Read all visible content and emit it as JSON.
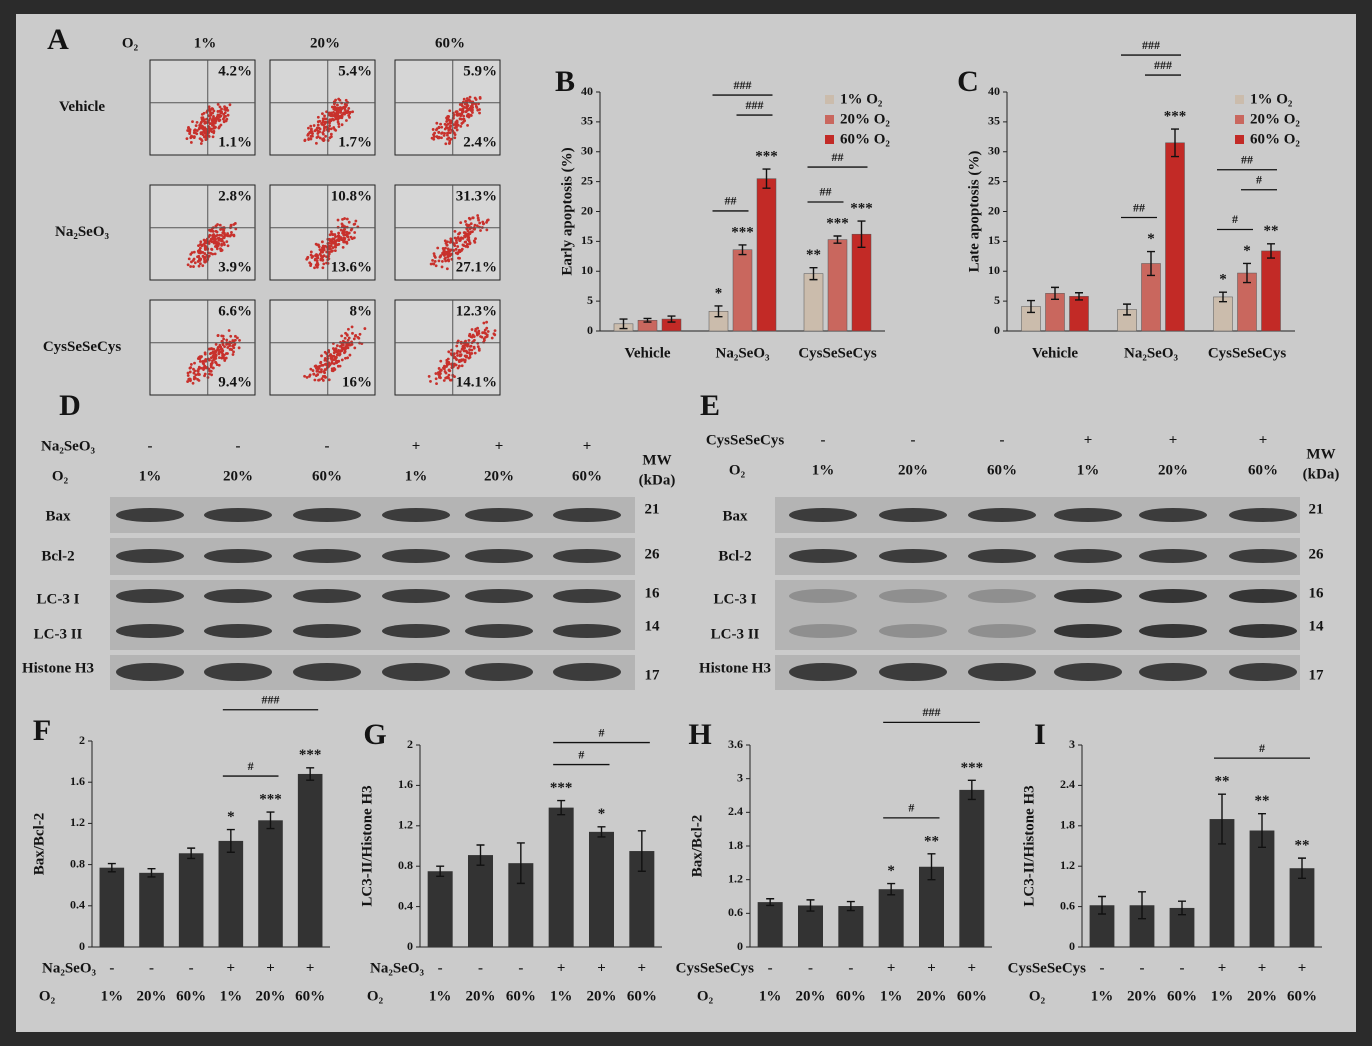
{
  "panel_a": {
    "label": "A",
    "o2_label": "O₂",
    "columns": [
      "1%",
      "20%",
      "60%"
    ],
    "rows": [
      {
        "label": "Vehicle",
        "cells": [
          {
            "upper": "4.2%",
            "lower": "1.1%"
          },
          {
            "upper": "5.4%",
            "lower": "1.7%"
          },
          {
            "upper": "5.9%",
            "lower": "2.4%"
          }
        ]
      },
      {
        "label": "Na₂SeO₃",
        "cells": [
          {
            "upper": "2.8%",
            "lower": "3.9%"
          },
          {
            "upper": "10.8%",
            "lower": "13.6%"
          },
          {
            "upper": "31.3%",
            "lower": "27.1%"
          }
        ]
      },
      {
        "label": "CysSeSeCys",
        "cells": [
          {
            "upper": "6.6%",
            "lower": "9.4%"
          },
          {
            "upper": "8%",
            "lower": "16%"
          },
          {
            "upper": "12.3%",
            "lower": "14.1%"
          }
        ]
      }
    ]
  },
  "blot_d": {
    "label": "D",
    "treatment": {
      "label": "Na₂SeO₃",
      "values": [
        "-",
        "-",
        "-",
        "+",
        "+",
        "+"
      ]
    },
    "o2": {
      "label": "O₂",
      "values": [
        "1%",
        "20%",
        "60%",
        "1%",
        "20%",
        "60%"
      ]
    },
    "mw_label": [
      "MW",
      "(kDa)"
    ],
    "rows": [
      {
        "label": "Bax",
        "mw": 21
      },
      {
        "label": "Bcl-2",
        "mw": 26
      },
      {
        "label": "LC-3 I",
        "mw": 16
      },
      {
        "label": "LC-3 II",
        "mw": 14
      },
      {
        "label": "Histone H3",
        "mw": 17
      }
    ]
  },
  "blot_e": {
    "label": "E",
    "treatment": {
      "label": "CysSeSeCys",
      "values": [
        "-",
        "-",
        "-",
        "+",
        "+",
        "+"
      ]
    },
    "o2": {
      "label": "O₂",
      "values": [
        "1%",
        "20%",
        "60%",
        "1%",
        "20%",
        "60%"
      ]
    },
    "mw_label": [
      "MW",
      "(kDa)"
    ],
    "rows": [
      {
        "label": "Bax",
        "mw": 21
      },
      {
        "label": "Bcl-2",
        "mw": 26
      },
      {
        "label": "LC-3 I",
        "mw": 16
      },
      {
        "label": "LC-3 II",
        "mw": 14
      },
      {
        "label": "Histone H3",
        "mw": 17
      }
    ]
  },
  "chart_data": [
    {
      "type": "bar",
      "panel": "B",
      "y_label": "Early apoptosis (%)",
      "categories": [
        "Vehicle",
        "Na₂SeO₃",
        "CysSeSeCys"
      ],
      "ylim": [
        0,
        40
      ],
      "yticks": [
        0,
        5,
        10,
        15,
        20,
        25,
        30,
        35,
        40
      ],
      "legend": "upper right",
      "series": [
        {
          "name": "1% O₂",
          "color": "#cbbcac",
          "values": [
            1.2,
            3.3,
            9.6
          ],
          "errors": [
            0.8,
            0.9,
            1.0
          ],
          "stars": [
            null,
            "*",
            "**"
          ]
        },
        {
          "name": "20% O₂",
          "color": "#c9675e",
          "values": [
            1.8,
            13.6,
            15.3
          ],
          "errors": [
            0.3,
            0.8,
            0.6
          ],
          "stars": [
            null,
            "***",
            "***"
          ]
        },
        {
          "name": "60% O₂",
          "color": "#c22a26",
          "values": [
            2.0,
            25.5,
            16.2
          ],
          "errors": [
            0.5,
            1.6,
            2.2
          ],
          "stars": [
            null,
            "***",
            "***"
          ]
        }
      ],
      "brackets": [
        {
          "category": 1,
          "from": 0,
          "to": 1,
          "label": "##"
        },
        {
          "category": 1,
          "from": 1,
          "to": 2,
          "label": "###"
        },
        {
          "category": 1,
          "from": 0,
          "to": 2,
          "label": "###"
        },
        {
          "category": 2,
          "from": 0,
          "to": 1,
          "label": "##"
        },
        {
          "category": 2,
          "from": 0,
          "to": 2,
          "label": "##"
        }
      ]
    },
    {
      "type": "bar",
      "panel": "C",
      "y_label": "Late apoptosis (%)",
      "categories": [
        "Vehicle",
        "Na₂SeO₃",
        "CysSeSeCys"
      ],
      "ylim": [
        0,
        40
      ],
      "yticks": [
        0,
        5,
        10,
        15,
        20,
        25,
        30,
        35,
        40
      ],
      "legend": "upper right",
      "series": [
        {
          "name": "1% O₂",
          "color": "#cbbcac",
          "values": [
            4.1,
            3.6,
            5.7
          ],
          "errors": [
            1.0,
            0.9,
            0.8
          ],
          "stars": [
            null,
            null,
            "*"
          ]
        },
        {
          "name": "20% O₂",
          "color": "#c9675e",
          "values": [
            6.3,
            11.3,
            9.7
          ],
          "errors": [
            1.0,
            2.0,
            1.6
          ],
          "stars": [
            null,
            "*",
            "*"
          ]
        },
        {
          "name": "60% O₂",
          "color": "#c22a26",
          "values": [
            5.8,
            31.5,
            13.4
          ],
          "errors": [
            0.6,
            2.3,
            1.2
          ],
          "stars": [
            null,
            "***",
            "**"
          ]
        }
      ],
      "brackets": [
        {
          "category": 1,
          "from": 0,
          "to": 1,
          "label": "##"
        },
        {
          "category": 1,
          "from": 1,
          "to": 2,
          "label": "###"
        },
        {
          "category": 1,
          "from": 0,
          "to": 2,
          "label": "###"
        },
        {
          "category": 2,
          "from": 0,
          "to": 1,
          "label": "#"
        },
        {
          "category": 2,
          "from": 1,
          "to": 2,
          "label": "#"
        },
        {
          "category": 2,
          "from": 0,
          "to": 2,
          "label": "##"
        }
      ]
    },
    {
      "type": "bar",
      "panel": "F",
      "y_label": "Bax/Bcl-2",
      "color": "#333333",
      "treatment": {
        "label": "Na₂SeO₃",
        "values": [
          "-",
          "-",
          "-",
          "+",
          "+",
          "+"
        ]
      },
      "category_label": "O₂",
      "categories": [
        "1%",
        "20%",
        "60%",
        "1%",
        "20%",
        "60%"
      ],
      "values": [
        0.77,
        0.72,
        0.91,
        1.03,
        1.23,
        1.68
      ],
      "errors": [
        0.04,
        0.04,
        0.05,
        0.11,
        0.08,
        0.06
      ],
      "stars": [
        null,
        null,
        null,
        "*",
        "***",
        "***"
      ],
      "ylim": [
        0,
        2
      ],
      "yticks": [
        0,
        0.4,
        0.8,
        1.2,
        1.6,
        2
      ],
      "brackets": [
        {
          "from": 3,
          "to": 4,
          "label": "#"
        },
        {
          "from": 3,
          "to": 5,
          "label": "###"
        }
      ]
    },
    {
      "type": "bar",
      "panel": "G",
      "y_label": "LC3-II/Histone H3",
      "color": "#333333",
      "treatment": {
        "label": "Na₂SeO₃",
        "values": [
          "-",
          "-",
          "-",
          "+",
          "+",
          "+"
        ]
      },
      "category_label": "O₂",
      "categories": [
        "1%",
        "20%",
        "60%",
        "1%",
        "20%",
        "60%"
      ],
      "values": [
        0.75,
        0.91,
        0.83,
        1.38,
        1.14,
        0.95
      ],
      "errors": [
        0.05,
        0.1,
        0.2,
        0.07,
        0.05,
        0.2
      ],
      "stars": [
        null,
        null,
        null,
        "***",
        "*",
        null
      ],
      "ylim": [
        0,
        2
      ],
      "yticks": [
        0,
        0.4,
        0.8,
        1.2,
        1.6,
        2
      ],
      "brackets": [
        {
          "from": 3,
          "to": 4,
          "label": "#"
        },
        {
          "from": 3,
          "to": 5,
          "label": "#"
        }
      ]
    },
    {
      "type": "bar",
      "panel": "H",
      "y_label": "Bax/Bcl-2",
      "color": "#333333",
      "treatment": {
        "label": "CysSeSeCys",
        "values": [
          "-",
          "-",
          "-",
          "+",
          "+",
          "+"
        ]
      },
      "category_label": "O₂",
      "categories": [
        "1%",
        "20%",
        "60%",
        "1%",
        "20%",
        "60%"
      ],
      "values": [
        0.8,
        0.74,
        0.73,
        1.03,
        1.43,
        2.8
      ],
      "errors": [
        0.06,
        0.1,
        0.08,
        0.1,
        0.23,
        0.17
      ],
      "stars": [
        null,
        null,
        null,
        "*",
        "**",
        "***"
      ],
      "ylim": [
        0,
        3.6
      ],
      "yticks": [
        0,
        0.6,
        1.2,
        1.8,
        2.4,
        3,
        3.6
      ],
      "brackets": [
        {
          "from": 3,
          "to": 4,
          "label": "#"
        },
        {
          "from": 3,
          "to": 5,
          "label": "###"
        }
      ]
    },
    {
      "type": "bar",
      "panel": "I",
      "y_label": "LC3-II/Histone H3",
      "color": "#333333",
      "treatment": {
        "label": "CysSeSeCys",
        "values": [
          "-",
          "-",
          "-",
          "+",
          "+",
          "+"
        ]
      },
      "category_label": "O₂",
      "categories": [
        "1%",
        "20%",
        "60%",
        "1%",
        "20%",
        "60%"
      ],
      "values": [
        0.62,
        0.62,
        0.58,
        1.9,
        1.73,
        1.17
      ],
      "errors": [
        0.13,
        0.2,
        0.1,
        0.37,
        0.25,
        0.15
      ],
      "stars": [
        null,
        null,
        null,
        "**",
        "**",
        "**"
      ],
      "ylim": [
        0,
        3
      ],
      "yticks": [
        0,
        0.6,
        1.2,
        1.8,
        2.4,
        3
      ],
      "brackets": [
        {
          "from": 3,
          "to": 5,
          "label": "#"
        }
      ]
    }
  ]
}
